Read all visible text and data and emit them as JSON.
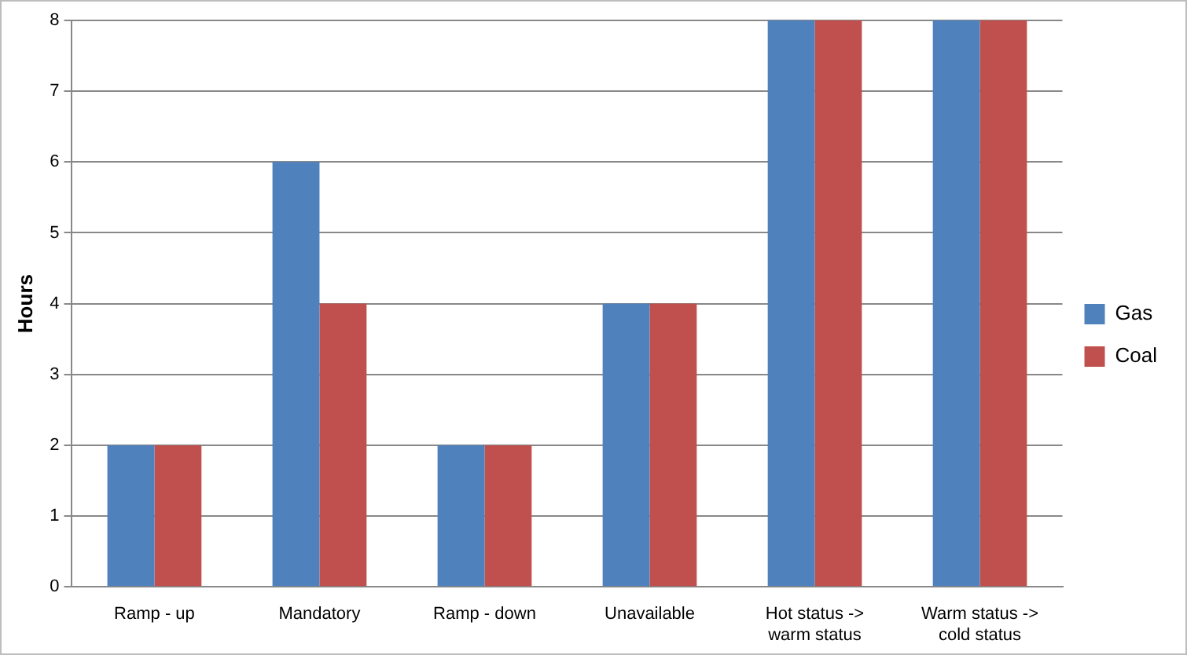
{
  "chart_data": {
    "type": "bar",
    "ylabel": "Hours",
    "categories": [
      "Ramp - up",
      "Mandatory",
      "Ramp - down",
      "Unavailable",
      "Hot status -> warm status",
      "Warm status -> cold status"
    ],
    "series": [
      {
        "name": "Gas",
        "color": "#4f81bd",
        "values": [
          2,
          6,
          2,
          4,
          8,
          8
        ]
      },
      {
        "name": "Coal",
        "color": "#c0504d",
        "values": [
          2,
          4,
          2,
          4,
          8,
          8
        ]
      }
    ],
    "ylim": [
      0,
      8
    ],
    "yticks": [
      0,
      1,
      2,
      3,
      4,
      5,
      6,
      7,
      8
    ],
    "grid": "y",
    "legend": "right"
  }
}
